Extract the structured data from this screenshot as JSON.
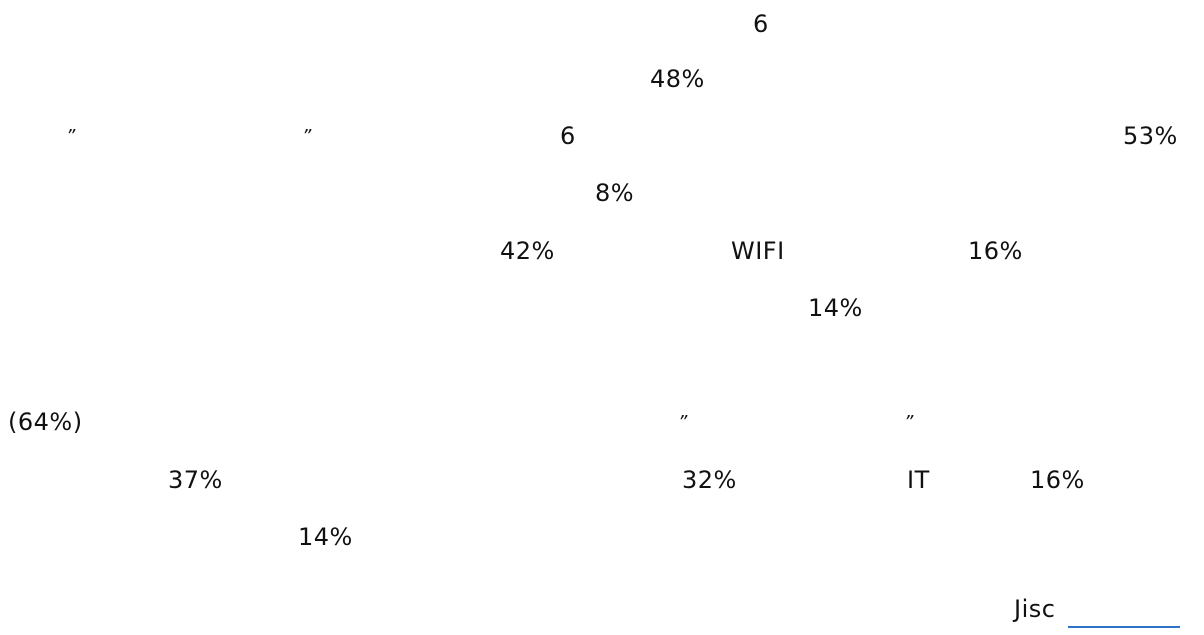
{
  "para1": {
    "line1": {
      "value": "6"
    },
    "line2": {
      "value": "48%"
    },
    "line3": {
      "open_quote": "”",
      "close_quote": "”",
      "value1": "6",
      "value2": "53%"
    },
    "line4": {
      "value": "8%"
    },
    "line5": {
      "value1": "42%",
      "label": "WIFI",
      "value2": "16%"
    },
    "line6": {
      "value": "14%"
    }
  },
  "para2": {
    "line1": {
      "value": "(64%)",
      "open_quote": "”",
      "close_quote": "”"
    },
    "line2": {
      "value1": "37%",
      "value2": "32%",
      "label": "IT",
      "value3": "16%"
    },
    "line3": {
      "value": "14%"
    }
  },
  "footer": {
    "source_label": "Jisc"
  }
}
